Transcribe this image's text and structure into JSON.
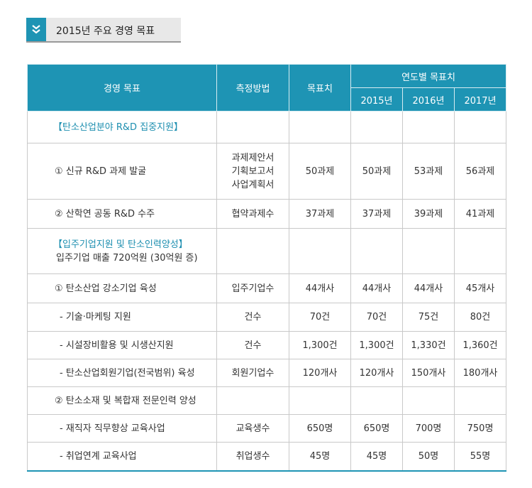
{
  "page_title": "2015년 주요 경영 목표",
  "header": {
    "goal": "경영 목표",
    "method": "측정방법",
    "target": "목표치",
    "yearly": "연도별 목표치",
    "years": [
      "2015년",
      "2016년",
      "2017년"
    ]
  },
  "sections": {
    "rd_title": "【탄소산업분야 R&D 집중지원】",
    "tenant_title": "【입주기업지원 및 탄소인력양성】",
    "tenant_subtitle": "입주기업 매출 720억원 (30억원 증)"
  },
  "rows": {
    "r1": {
      "goal": "① 신규 R&D 과제 발굴",
      "method": [
        "과제제안서",
        "기획보고서",
        "사업계획서"
      ],
      "target": "50과제",
      "y2015": "50과제",
      "y2016": "53과제",
      "y2017": "56과제"
    },
    "r2": {
      "goal": "② 산학연 공동 R&D 수주",
      "method": "협약과제수",
      "target": "37과제",
      "y2015": "37과제",
      "y2016": "39과제",
      "y2017": "41과제"
    },
    "r3": {
      "goal": "① 탄소산업 강소기업 육성",
      "method": "입주기업수",
      "target": "44개사",
      "y2015": "44개사",
      "y2016": "44개사",
      "y2017": "45개사"
    },
    "r4": {
      "goal": "- 기술·마케팅 지원",
      "method": "건수",
      "target": "70건",
      "y2015": "70건",
      "y2016": "75건",
      "y2017": "80건"
    },
    "r5": {
      "goal": "- 시설장비활용 및 시생산지원",
      "method": "건수",
      "target": "1,300건",
      "y2015": "1,300건",
      "y2016": "1,330건",
      "y2017": "1,360건"
    },
    "r6": {
      "goal": "- 탄소산업회원기업(전국범위) 육성",
      "method": "회원기업수",
      "target": "120개사",
      "y2015": "120개사",
      "y2016": "150개사",
      "y2017": "180개사"
    },
    "r7": {
      "goal": "② 탄소소재 및 복합재 전문인력 양성"
    },
    "r8": {
      "goal": "- 재직자 직무향상 교육사업",
      "method": "교육생수",
      "target": "650명",
      "y2015": "650명",
      "y2016": "700명",
      "y2017": "750명"
    },
    "r9": {
      "goal": "- 취업연계 교육사업",
      "method": "취업생수",
      "target": "45명",
      "y2015": "45명",
      "y2016": "50명",
      "y2017": "55명"
    }
  },
  "colors": {
    "header_bg": "#1e94b4",
    "section_title": "#1e8fb0",
    "border": "#c9c9c9"
  },
  "icons": {
    "title": "double-chevron-down-icon"
  }
}
